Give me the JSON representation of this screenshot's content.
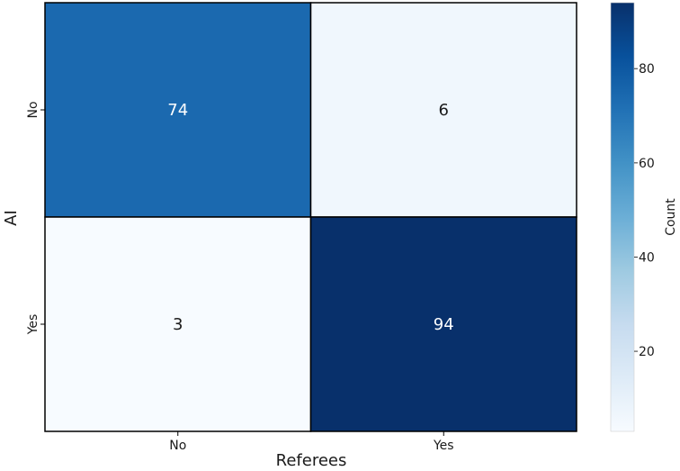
{
  "chart_data": {
    "type": "heatmap",
    "title": "",
    "xlabel": "Referees",
    "ylabel": "AI",
    "x_categories": [
      "No",
      "Yes"
    ],
    "y_categories": [
      "No",
      "Yes"
    ],
    "values": [
      [
        74,
        6
      ],
      [
        3,
        94
      ]
    ],
    "colorbar": {
      "label": "Count",
      "min": 3,
      "max": 94,
      "ticks": [
        20,
        40,
        60,
        80
      ]
    },
    "colormap": "Blues",
    "colors": {
      "low": "#f7fbff",
      "high": "#08306b",
      "cell_border": "#000000",
      "text": "#1a1a1a"
    },
    "grid": true,
    "legend": "none"
  }
}
